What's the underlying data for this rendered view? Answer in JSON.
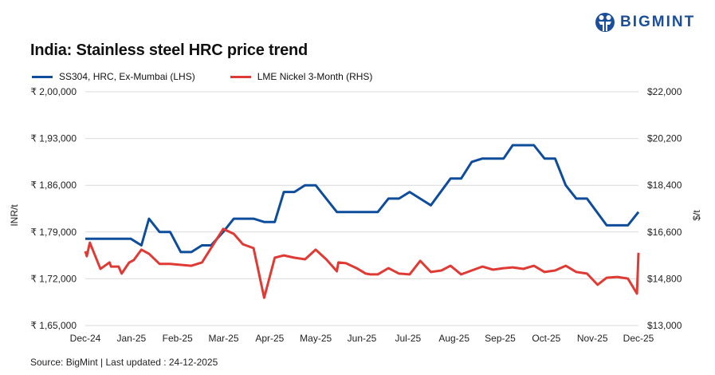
{
  "brand": {
    "name": "BIGMINT",
    "color": "#1b4f9c"
  },
  "footer": {
    "source": "Source: BigMint | Last updated : 24-12-2025"
  },
  "chart_data": {
    "type": "line",
    "title": "India: Stainless steel HRC price trend",
    "ylabel": "INR/t",
    "y2label": "$/t",
    "ylim": [
      165000,
      200000
    ],
    "y2lim": [
      13000,
      22000
    ],
    "grid": true,
    "legend_position": "top-left",
    "x_tick_labels": [
      "Dec-24",
      "Jan-25",
      "Feb-25",
      "Mar-25",
      "Apr-25",
      "May-25",
      "Jun-25",
      "Jul-25",
      "Aug-25",
      "Sep-25",
      "Oct-25",
      "Nov-25",
      "Dec-25"
    ],
    "y_tick_labels": [
      "₹ 1,65,000",
      "₹ 1,72,000",
      "₹ 1,79,000",
      "₹ 1,86,000",
      "₹ 1,93,000",
      "₹ 2,00,000"
    ],
    "y2_tick_labels": [
      "$13,000",
      "$14,800",
      "$16,600",
      "$18,400",
      "$20,200",
      "$22,000"
    ],
    "series": [
      {
        "name": "SS304, HRC, Ex-Mumbai (LHS)",
        "axis": "left",
        "color": "#0e4c9c",
        "points": [
          [
            "2024-12-01",
            178000
          ],
          [
            "2024-12-31",
            178000
          ],
          [
            "2025-01-07",
            177000
          ],
          [
            "2025-01-12",
            181000
          ],
          [
            "2025-01-19",
            179000
          ],
          [
            "2025-01-26",
            179000
          ],
          [
            "2025-02-02",
            176000
          ],
          [
            "2025-02-09",
            176000
          ],
          [
            "2025-02-16",
            177000
          ],
          [
            "2025-02-22",
            177000
          ],
          [
            "2025-03-02",
            179000
          ],
          [
            "2025-03-09",
            181000
          ],
          [
            "2025-03-22",
            181000
          ],
          [
            "2025-03-29",
            180500
          ],
          [
            "2025-04-05",
            180500
          ],
          [
            "2025-04-11",
            185000
          ],
          [
            "2025-04-18",
            185000
          ],
          [
            "2025-04-25",
            186000
          ],
          [
            "2025-05-02",
            186000
          ],
          [
            "2025-05-16",
            182000
          ],
          [
            "2025-06-12",
            182000
          ],
          [
            "2025-06-19",
            184000
          ],
          [
            "2025-06-26",
            184000
          ],
          [
            "2025-07-03",
            185000
          ],
          [
            "2025-07-17",
            183000
          ],
          [
            "2025-07-30",
            187000
          ],
          [
            "2025-08-06",
            187000
          ],
          [
            "2025-08-13",
            189500
          ],
          [
            "2025-08-20",
            190000
          ],
          [
            "2025-09-03",
            190000
          ],
          [
            "2025-09-09",
            192000
          ],
          [
            "2025-09-23",
            192000
          ],
          [
            "2025-09-30",
            190000
          ],
          [
            "2025-10-07",
            190000
          ],
          [
            "2025-10-14",
            186000
          ],
          [
            "2025-10-21",
            184000
          ],
          [
            "2025-10-28",
            184000
          ],
          [
            "2025-11-10",
            180000
          ],
          [
            "2025-11-24",
            180000
          ],
          [
            "2025-12-01",
            182000
          ]
        ]
      },
      {
        "name": "LME Nickel 3-Month (RHS)",
        "axis": "right",
        "color": "#e03a34",
        "points": [
          [
            "2024-12-01",
            15860
          ],
          [
            "2024-12-02",
            15670
          ],
          [
            "2024-12-04",
            16190
          ],
          [
            "2024-12-11",
            15180
          ],
          [
            "2024-12-17",
            15430
          ],
          [
            "2024-12-18",
            15270
          ],
          [
            "2024-12-23",
            15270
          ],
          [
            "2024-12-25",
            15000
          ],
          [
            "2024-12-30",
            15430
          ],
          [
            "2025-01-02",
            15520
          ],
          [
            "2025-01-07",
            15920
          ],
          [
            "2025-01-12",
            15760
          ],
          [
            "2025-01-19",
            15370
          ],
          [
            "2025-01-26",
            15370
          ],
          [
            "2025-02-09",
            15300
          ],
          [
            "2025-02-16",
            15430
          ],
          [
            "2025-03-02",
            16720
          ],
          [
            "2025-03-09",
            16530
          ],
          [
            "2025-03-15",
            16130
          ],
          [
            "2025-03-22",
            15980
          ],
          [
            "2025-03-29",
            14070
          ],
          [
            "2025-04-05",
            15610
          ],
          [
            "2025-04-11",
            15700
          ],
          [
            "2025-04-18",
            15610
          ],
          [
            "2025-04-25",
            15550
          ],
          [
            "2025-05-02",
            15920
          ],
          [
            "2025-05-09",
            15550
          ],
          [
            "2025-05-16",
            15090
          ],
          [
            "2025-05-17",
            15430
          ],
          [
            "2025-05-22",
            15400
          ],
          [
            "2025-05-29",
            15210
          ],
          [
            "2025-06-04",
            15000
          ],
          [
            "2025-06-07",
            14970
          ],
          [
            "2025-06-12",
            14970
          ],
          [
            "2025-06-19",
            15210
          ],
          [
            "2025-06-26",
            15000
          ],
          [
            "2025-07-03",
            14970
          ],
          [
            "2025-07-10",
            15490
          ],
          [
            "2025-07-17",
            15060
          ],
          [
            "2025-07-24",
            15120
          ],
          [
            "2025-07-30",
            15300
          ],
          [
            "2025-08-06",
            14970
          ],
          [
            "2025-08-13",
            15120
          ],
          [
            "2025-08-20",
            15270
          ],
          [
            "2025-08-27",
            15150
          ],
          [
            "2025-09-03",
            15210
          ],
          [
            "2025-09-09",
            15240
          ],
          [
            "2025-09-16",
            15180
          ],
          [
            "2025-09-23",
            15300
          ],
          [
            "2025-09-30",
            15060
          ],
          [
            "2025-10-07",
            15120
          ],
          [
            "2025-10-14",
            15300
          ],
          [
            "2025-10-21",
            15060
          ],
          [
            "2025-10-28",
            15000
          ],
          [
            "2025-11-04",
            14570
          ],
          [
            "2025-11-10",
            14840
          ],
          [
            "2025-11-17",
            14870
          ],
          [
            "2025-11-24",
            14810
          ],
          [
            "2025-11-30",
            14230
          ],
          [
            "2025-12-01",
            15800
          ]
        ]
      }
    ]
  }
}
